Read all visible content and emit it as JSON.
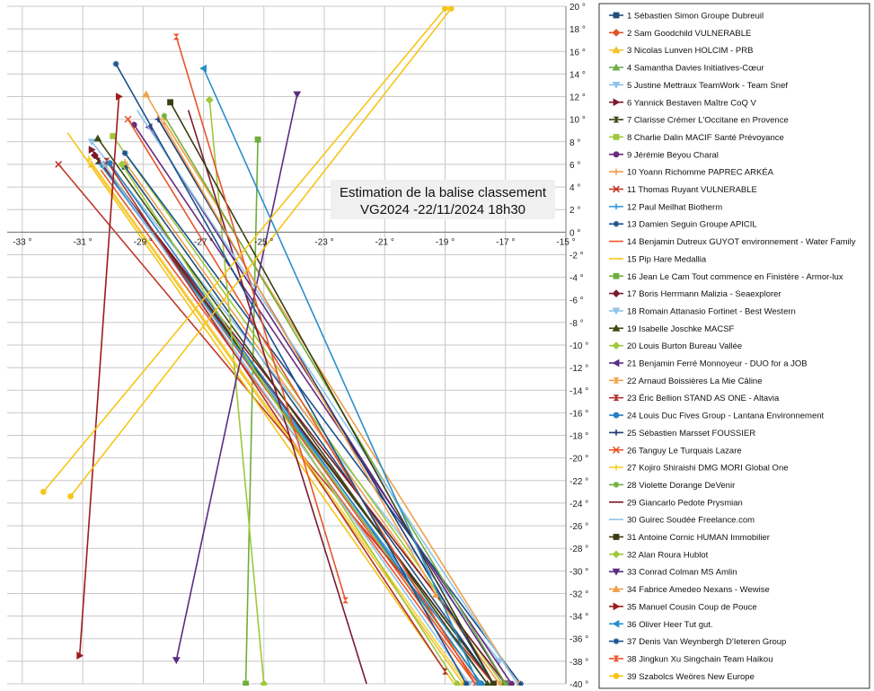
{
  "chart_data": {
    "type": "line",
    "title_lines": [
      "Estimation de la balise classement",
      "VG2024 -22/11/2024 18h30"
    ],
    "xlabel": "",
    "ylabel": "",
    "xlim": [
      -33.5,
      -15
    ],
    "ylim": [
      -40,
      20
    ],
    "x_ticks": [
      {
        "v": -33,
        "label": "-33 °"
      },
      {
        "v": -31,
        "label": "-31 °"
      },
      {
        "v": -29,
        "label": "-29 °"
      },
      {
        "v": -27,
        "label": "-27 °"
      },
      {
        "v": -25,
        "label": "-25 °"
      },
      {
        "v": -23,
        "label": "-23 °"
      },
      {
        "v": -21,
        "label": "-21 °"
      },
      {
        "v": -19,
        "label": "-19 °"
      },
      {
        "v": -17,
        "label": "-17 °"
      },
      {
        "v": -15,
        "label": "-15 °"
      }
    ],
    "y_ticks": [
      {
        "v": 20,
        "label": "20 °"
      },
      {
        "v": 18,
        "label": "18 °"
      },
      {
        "v": 16,
        "label": "16 °"
      },
      {
        "v": 14,
        "label": "14 °"
      },
      {
        "v": 12,
        "label": "12 °"
      },
      {
        "v": 10,
        "label": "10 °"
      },
      {
        "v": 8,
        "label": "8 °"
      },
      {
        "v": 6,
        "label": "6 °"
      },
      {
        "v": 4,
        "label": "4 °"
      },
      {
        "v": 2,
        "label": "2 °"
      },
      {
        "v": 0,
        "label": "0 °"
      },
      {
        "v": -2,
        "label": "-2 °"
      },
      {
        "v": -4,
        "label": "-4 °"
      },
      {
        "v": -6,
        "label": "-6 °"
      },
      {
        "v": -8,
        "label": "-8 °"
      },
      {
        "v": -10,
        "label": "-10 °"
      },
      {
        "v": -12,
        "label": "-12 °"
      },
      {
        "v": -14,
        "label": "-14 °"
      },
      {
        "v": -16,
        "label": "-16 °"
      },
      {
        "v": -18,
        "label": "-18 °"
      },
      {
        "v": -20,
        "label": "-20 °"
      },
      {
        "v": -22,
        "label": "-22 °"
      },
      {
        "v": -24,
        "label": "-24 °"
      },
      {
        "v": -26,
        "label": "-26 °"
      },
      {
        "v": -28,
        "label": "-28 °"
      },
      {
        "v": -30,
        "label": "-30 °"
      },
      {
        "v": -32,
        "label": "-32 °"
      },
      {
        "v": -34,
        "label": "-34 °"
      },
      {
        "v": -36,
        "label": "-36 °"
      },
      {
        "v": -38,
        "label": "-38 °"
      },
      {
        "v": -40,
        "label": "-40 °"
      }
    ],
    "grid": true,
    "legend_position": "right",
    "series": [
      {
        "name": "1 Sébastien Simon Groupe Dubreuil",
        "color": "#1f4e79",
        "marker": "square",
        "points": [
          [
            -29.6,
            5.8
          ],
          [
            -17.4,
            -40
          ]
        ]
      },
      {
        "name": "2 Sam Goodchild VULNERABLE",
        "color": "#e0532a",
        "marker": "diamond",
        "points": [
          [
            -30.3,
            6.0
          ],
          [
            -17.9,
            -40
          ]
        ]
      },
      {
        "name": "3 Nicolas Lunven HOLCIM - PRB",
        "color": "#f2c12e",
        "marker": "triangle",
        "points": [
          [
            -30.7,
            6.0
          ],
          [
            -18.4,
            -40
          ]
        ]
      },
      {
        "name": "4 Samantha Davies Initiatives-Cœur",
        "color": "#70ad47",
        "marker": "triangle",
        "points": [
          [
            -30.3,
            6.0
          ],
          [
            -17.8,
            -40
          ]
        ]
      },
      {
        "name": "5 Justine Mettraux TeamWork - Team Snef",
        "color": "#8fc3ea",
        "marker": "triangle-down",
        "points": [
          [
            -30.7,
            8.0
          ],
          [
            -17.2,
            -38.0
          ]
        ]
      },
      {
        "name": "6 Yannick Bestaven Maître CoQ V",
        "color": "#7b1a2e",
        "marker": "triangle-right",
        "points": [
          [
            -30.7,
            7.3
          ],
          [
            -17.4,
            -40
          ]
        ]
      },
      {
        "name": "7 Clarisse Crémer L'Occitane en Provence",
        "color": "#3c3c14",
        "marker": "bowtie",
        "points": [
          [
            -30.5,
            6.3
          ],
          [
            -17.4,
            -40
          ]
        ]
      },
      {
        "name": "8 Charlie Dalin MACIF Santé Prévoyance",
        "color": "#a0c83c",
        "marker": "square",
        "points": [
          [
            -30.0,
            8.5
          ],
          [
            -17.1,
            -40
          ]
        ]
      },
      {
        "name": "9 Jérémie Beyou Charal",
        "color": "#6a2c7e",
        "marker": "circle",
        "points": [
          [
            -29.3,
            9.5
          ],
          [
            -16.8,
            -40
          ]
        ]
      },
      {
        "name": "10 Yoann Richomme PAPREC ARKÉA",
        "color": "#f0a04b",
        "marker": "plus",
        "points": [
          [
            -29.6,
            6.2
          ],
          [
            -17.2,
            -40
          ]
        ]
      },
      {
        "name": "11 Thomas Ruyant VULNERABLE",
        "color": "#c0392b",
        "marker": "x",
        "points": [
          [
            -31.8,
            6.0
          ],
          [
            -17.4,
            -40
          ]
        ]
      },
      {
        "name": "12 Paul Meilhat Biotherm",
        "color": "#3a9ad9",
        "marker": "plus",
        "points": [
          [
            -30.4,
            6.0
          ],
          [
            -17.6,
            -40
          ]
        ]
      },
      {
        "name": "13 Damien Seguin Groupe APICIL",
        "color": "#1a4f8a",
        "marker": "star",
        "points": [
          [
            -29.6,
            7.0
          ],
          [
            -16.5,
            -40
          ]
        ]
      },
      {
        "name": "14 Benjamin Dutreux GUYOT environnement - Water Family",
        "color": "#e8542a",
        "marker": "none",
        "points": [
          [
            -30.4,
            5.5
          ],
          [
            -18.0,
            -40
          ]
        ]
      },
      {
        "name": "15 Pip Hare Medallia",
        "color": "#f5c518",
        "marker": "none",
        "points": [
          [
            -31.5,
            8.8
          ],
          [
            -18.7,
            -40
          ]
        ]
      },
      {
        "name": "16 Jean Le Cam Tout commence en Finistère - Armor-lux",
        "color": "#6fae3a",
        "marker": "square",
        "points": [
          [
            -25.2,
            8.2
          ],
          [
            -25.6,
            -40
          ]
        ]
      },
      {
        "name": "17 Boris Herrmann Malizia - Seaexplorer",
        "color": "#7b1a2e",
        "marker": "diamond",
        "points": [
          [
            -30.6,
            6.8
          ],
          [
            -17.0,
            -40
          ]
        ]
      },
      {
        "name": "18 Romain Attanasio Fortinet - Best Western",
        "color": "#8fc3ea",
        "marker": "triangle-down",
        "points": [
          [
            -30.3,
            6.0
          ],
          [
            -18.2,
            -40
          ]
        ]
      },
      {
        "name": "19 Isabelle Joschke MACSF",
        "color": "#3c4a14",
        "marker": "triangle",
        "points": [
          [
            -30.5,
            8.3
          ],
          [
            -17.6,
            -40
          ]
        ]
      },
      {
        "name": "20 Louis Burton Bureau Vallée",
        "color": "#a0c83c",
        "marker": "diamond",
        "points": [
          [
            -26.8,
            11.7
          ],
          [
            -25.0,
            -40
          ]
        ]
      },
      {
        "name": "21 Benjamin Ferré Monnoyeur - DUO for a JOB",
        "color": "#5b2c82",
        "marker": "triangle-left",
        "points": [
          [
            -28.8,
            9.3
          ],
          [
            -17.0,
            -40
          ]
        ]
      },
      {
        "name": "22 Arnaud Boissières La Mie Câline",
        "color": "#f0a04b",
        "marker": "bowtie",
        "points": [
          [
            -28.3,
            9.8
          ],
          [
            -16.6,
            -40
          ]
        ]
      },
      {
        "name": "23 Éric Bellion STAND AS ONE - Altavia",
        "color": "#b03030",
        "marker": "bowtie",
        "points": [
          [
            -30.2,
            6.3
          ],
          [
            -19.0,
            -38.9
          ]
        ]
      },
      {
        "name": "24 Louis Duc Fives Group - Lantana Environnement",
        "color": "#2a7fc1",
        "marker": "circle",
        "points": [
          [
            -30.1,
            6.1
          ],
          [
            -17.8,
            -40
          ]
        ]
      },
      {
        "name": "25 Sébastien Marsset FOUSSIER",
        "color": "#1f3b70",
        "marker": "plus",
        "points": [
          [
            -28.5,
            10.0
          ],
          [
            -17.4,
            -40
          ]
        ]
      },
      {
        "name": "26 Tanguy Le Turquais Lazare",
        "color": "#e8542a",
        "marker": "x",
        "points": [
          [
            -29.5,
            10.0
          ],
          [
            -18.0,
            -40
          ]
        ]
      },
      {
        "name": "27 Kojiro Shiraishi DMG MORI Global One",
        "color": "#f5d23a",
        "marker": "plus",
        "points": [
          [
            -30.8,
            6.5
          ],
          [
            -18.3,
            -40
          ]
        ]
      },
      {
        "name": "28 Violette Dorange DeVenir",
        "color": "#6fae3a",
        "marker": "star",
        "points": [
          [
            -28.3,
            10.3
          ],
          [
            -17.0,
            -40
          ]
        ]
      },
      {
        "name": "29 Giancarlo Pedote Prysmian",
        "color": "#7b1a2e",
        "marker": "none",
        "points": [
          [
            -27.5,
            10.8
          ],
          [
            -21.6,
            -40
          ]
        ]
      },
      {
        "name": "30 Guirec Soudée Freelance.com",
        "color": "#8fc3ea",
        "marker": "none",
        "points": [
          [
            -29.2,
            10.8
          ],
          [
            -16.6,
            -40
          ]
        ]
      },
      {
        "name": "31 Antoine Cornic HUMAN Immobilier",
        "color": "#3c3c14",
        "marker": "square",
        "points": [
          [
            -28.1,
            11.5
          ],
          [
            -17.4,
            -40
          ]
        ]
      },
      {
        "name": "32 Alan Roura Hublot",
        "color": "#a0c83c",
        "marker": "diamond",
        "points": [
          [
            -29.7,
            6.0
          ],
          [
            -18.6,
            -40
          ]
        ]
      },
      {
        "name": "33 Conrad Colman MS Amlin",
        "color": "#5b2c82",
        "marker": "triangle-down",
        "points": [
          [
            -23.9,
            12.2
          ],
          [
            -27.9,
            -37.9
          ]
        ]
      },
      {
        "name": "34 Fabrice Amedeo Nexans - Wewise",
        "color": "#f0a04b",
        "marker": "triangle",
        "points": [
          [
            -28.9,
            12.2
          ],
          [
            -19.3,
            -32.1
          ]
        ]
      },
      {
        "name": "35 Manuel Cousin Coup de Pouce",
        "color": "#9b1c1c",
        "marker": "triangle-right",
        "points": [
          [
            -29.8,
            12.0
          ],
          [
            -31.1,
            -37.5
          ]
        ]
      },
      {
        "name": "36 Oliver Heer Tut gut.",
        "color": "#2a8fc9",
        "marker": "triangle-left",
        "points": [
          [
            -27.0,
            14.5
          ],
          [
            -17.9,
            -40
          ]
        ]
      },
      {
        "name": "37 Denis Van Weynbergh D'Ieteren Group",
        "color": "#1a4f8a",
        "marker": "star",
        "points": [
          [
            -29.9,
            14.9
          ],
          [
            -18.3,
            -40
          ]
        ]
      },
      {
        "name": "38 Jingkun Xu Singchain Team Haikou",
        "color": "#e8542a",
        "marker": "bowtie",
        "points": [
          [
            -27.9,
            17.3
          ],
          [
            -22.3,
            -32.6
          ]
        ]
      },
      {
        "name": "39 Szabolcs Weöres New Europe",
        "color": "#f5c518",
        "marker": "circle",
        "points": [
          [
            -32.3,
            -23.0
          ],
          [
            -19.0,
            19.8
          ]
        ]
      },
      {
        "name": "",
        "color": "#f5c518",
        "marker": "circle",
        "points": [
          [
            -31.4,
            -23.4
          ],
          [
            -18.8,
            19.8
          ]
        ]
      }
    ]
  }
}
